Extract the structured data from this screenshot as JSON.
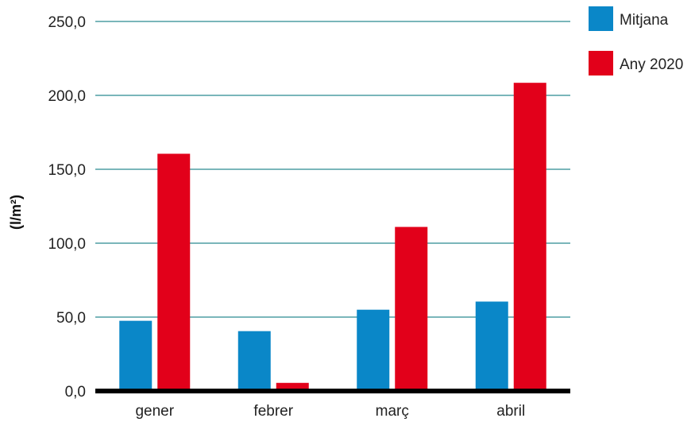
{
  "chart_data": {
    "type": "bar",
    "title": "",
    "xlabel": "",
    "ylabel": "(l/m²)",
    "categories": [
      "gener",
      "febrer",
      "març",
      "abril"
    ],
    "series": [
      {
        "name": "Mitjana",
        "color": "#0a87c8",
        "values": [
          47.5,
          40.5,
          55.0,
          60.5
        ]
      },
      {
        "name": "Any 2020",
        "color": "#e2001a",
        "values": [
          160.5,
          5.5,
          111.0,
          208.5
        ]
      }
    ],
    "ylim": [
      0,
      250
    ],
    "yticks": [
      0,
      50,
      100,
      150,
      200,
      250
    ],
    "ytick_labels": [
      "0,0",
      "50,0",
      "100,0",
      "150,0",
      "200,0",
      "250,0"
    ],
    "grid": true,
    "grid_color": "#2a8a91",
    "baseline_color": "#000000",
    "legend_position": "top-right"
  }
}
